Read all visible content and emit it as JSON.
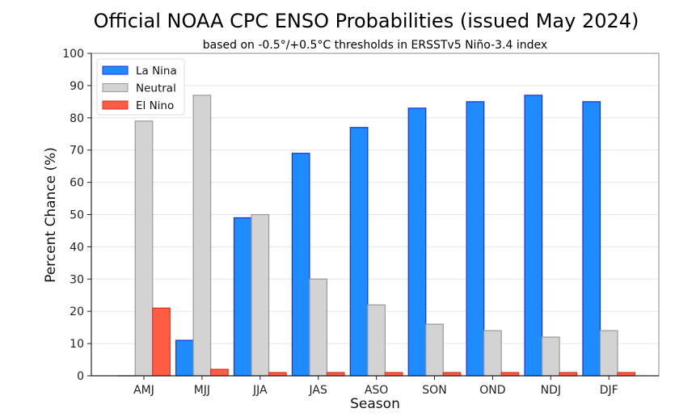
{
  "chart_data": {
    "type": "bar",
    "title": "Official NOAA CPC ENSO Probabilities (issued May 2024)",
    "subtitle": "based on -0.5°/+0.5°C thresholds in ERSSTv5 Niño-3.4 index",
    "xlabel": "Season",
    "ylabel": "Percent Chance (%)",
    "ylim": [
      0,
      100
    ],
    "yticks": [
      0,
      10,
      20,
      30,
      40,
      50,
      60,
      70,
      80,
      90,
      100
    ],
    "grid": true,
    "legend_position": "top-left",
    "categories": [
      "AMJ",
      "MJJ",
      "JJA",
      "JAS",
      "ASO",
      "SON",
      "OND",
      "NDJ",
      "DJF"
    ],
    "series": [
      {
        "name": "La Nina",
        "color": "#1e8cff",
        "edge": "#1a2fe0",
        "values": [
          0,
          11,
          49,
          69,
          77,
          83,
          85,
          87,
          85
        ]
      },
      {
        "name": "Neutral",
        "color": "#d3d3d3",
        "edge": "#999999",
        "values": [
          79,
          87,
          50,
          30,
          22,
          16,
          14,
          12,
          14
        ]
      },
      {
        "name": "El Nino",
        "color": "#ff5c45",
        "edge": "#d9331f",
        "values": [
          21,
          2,
          1,
          1,
          1,
          1,
          1,
          1,
          1
        ]
      }
    ]
  }
}
